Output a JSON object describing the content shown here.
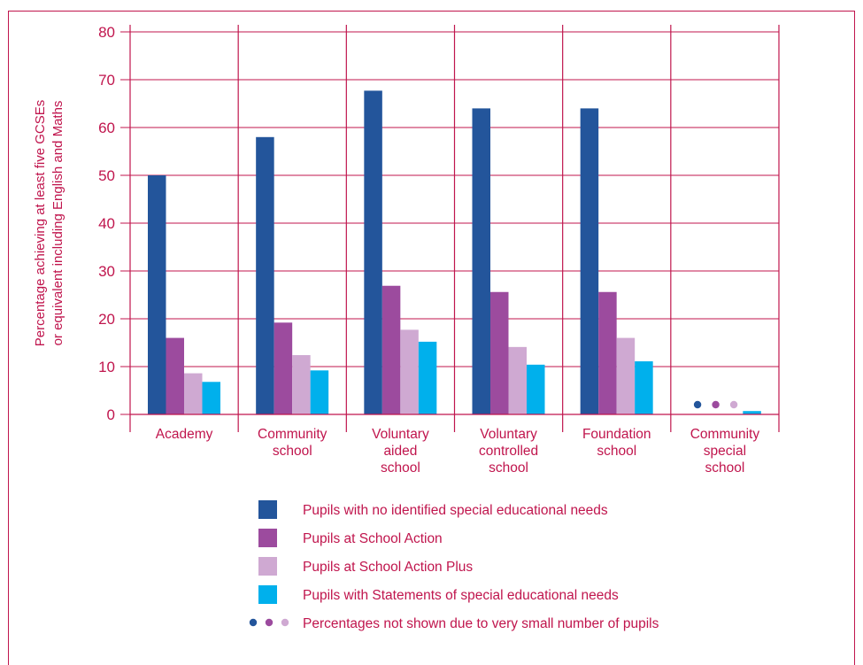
{
  "chart_data": {
    "type": "bar",
    "ylabel_lines": [
      "Percentage achieving at least five GCSEs",
      "or equivalent including English and Maths"
    ],
    "ylim": [
      0,
      80
    ],
    "yticks": [
      "0",
      "10",
      "20",
      "30",
      "40",
      "50",
      "60",
      "70",
      "80"
    ],
    "grid": true,
    "categories": [
      [
        "Academy"
      ],
      [
        "Community",
        "school"
      ],
      [
        "Voluntary",
        "aided",
        "school"
      ],
      [
        "Voluntary",
        "controlled",
        "school"
      ],
      [
        "Foundation",
        "school"
      ],
      [
        "Community",
        "special",
        "school"
      ]
    ],
    "series": [
      {
        "name": "Pupils with no identified special educational needs",
        "color": "#23559b",
        "values": [
          50,
          58,
          67.7,
          64,
          64,
          null
        ]
      },
      {
        "name": "Pupils at School Action",
        "color": "#9c4b9e",
        "values": [
          16,
          19.2,
          26.9,
          25.6,
          25.6,
          null
        ]
      },
      {
        "name": "Pupils at School Action Plus",
        "color": "#cfa9d2",
        "values": [
          8.6,
          12.4,
          17.7,
          14.1,
          16,
          null
        ]
      },
      {
        "name": "Pupils with Statements of special educational needs",
        "color": "#00b0ec",
        "values": [
          6.8,
          9.2,
          15.2,
          10.4,
          11.1,
          0.7
        ]
      }
    ],
    "suppressed_note": "Percentages not shown due to very small number of pupils",
    "suppressed_markers": [
      {
        "category": 5,
        "series": [
          0,
          1,
          2
        ]
      }
    ],
    "legend_placement": "bottom"
  }
}
